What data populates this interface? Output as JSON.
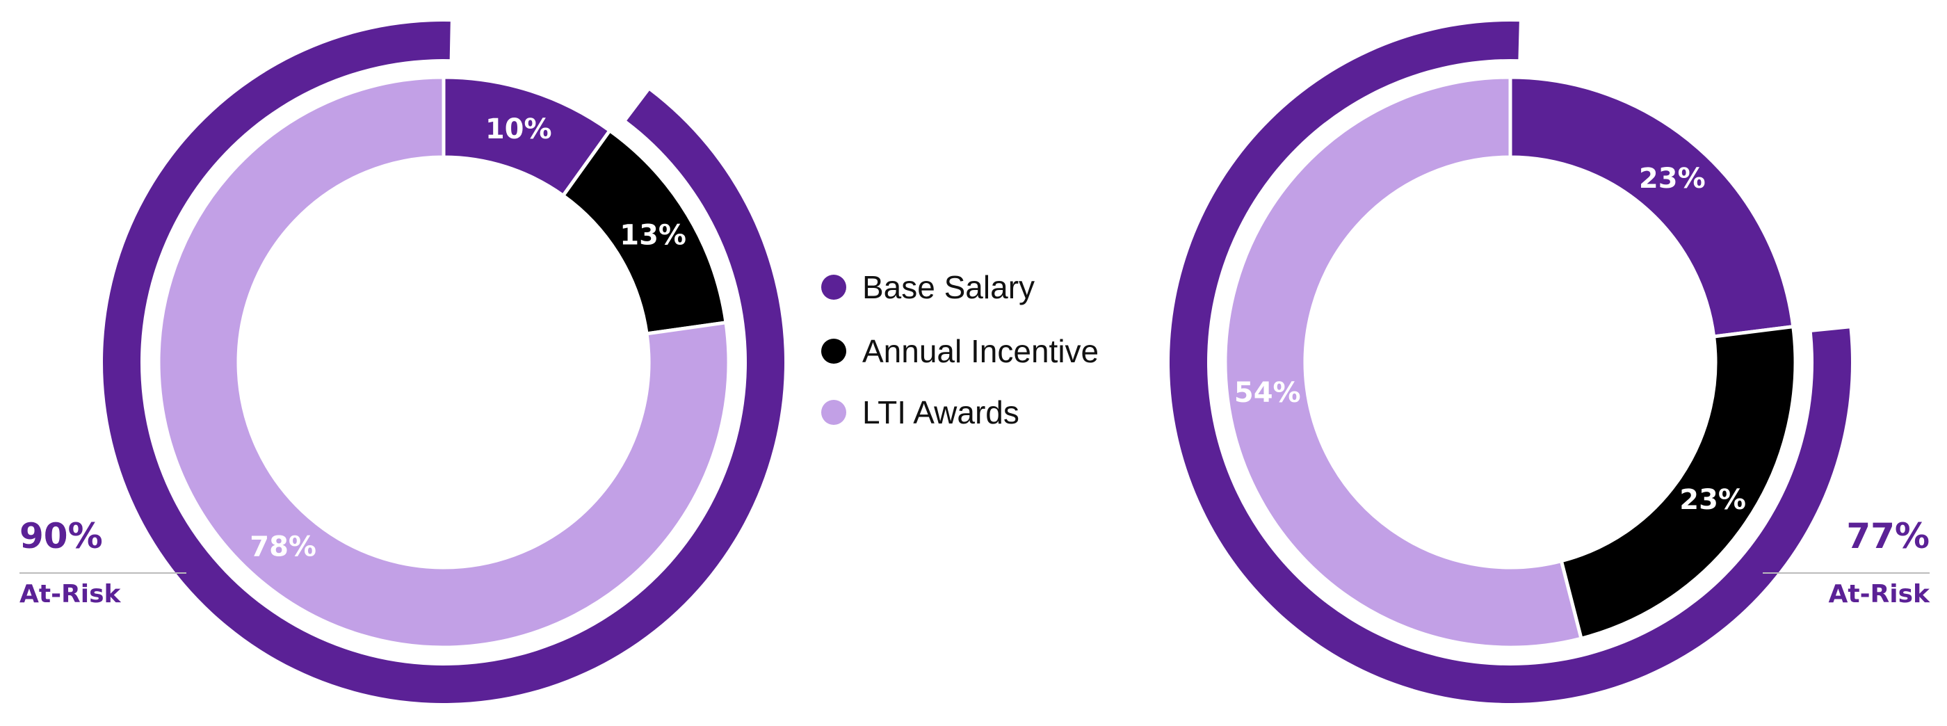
{
  "colors": {
    "base_salary": "#5b2196",
    "annual_incentive": "#000000",
    "lti_awards": "#c2a0e6",
    "at_risk_arc": "#5b2196",
    "divider": "#bbbbbb"
  },
  "legend": [
    {
      "label": "Base Salary",
      "color": "#5b2196"
    },
    {
      "label": "Annual Incentive",
      "color": "#000000"
    },
    {
      "label": "LTI Awards",
      "color": "#c2a0e6"
    }
  ],
  "chart_data": [
    {
      "type": "pie",
      "categories": [
        "Base Salary",
        "Annual Incentive",
        "LTI Awards"
      ],
      "values": [
        10,
        13,
        78
      ],
      "labels": [
        "10%",
        "13%",
        "78%"
      ],
      "at_risk": {
        "percent": 90,
        "percent_label": "90%",
        "label": "At-Risk"
      }
    },
    {
      "type": "pie",
      "categories": [
        "Base Salary",
        "Annual Incentive",
        "LTI Awards"
      ],
      "values": [
        23,
        23,
        54
      ],
      "labels": [
        "23%",
        "23%",
        "54%"
      ],
      "at_risk": {
        "percent": 77,
        "percent_label": "77%",
        "label": "At-Risk"
      }
    }
  ]
}
